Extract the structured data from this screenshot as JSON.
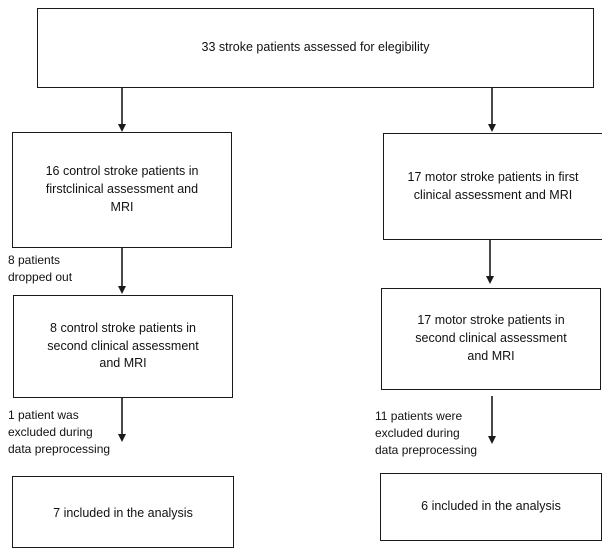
{
  "flowchart": {
    "top": {
      "text": "33 stroke patients assessed for elegibility"
    },
    "left": {
      "first": {
        "lines": [
          "16 control stroke patients in",
          "firstclinical assessment and",
          "MRI"
        ]
      },
      "dropout_note": {
        "lines": [
          "8 patients",
          "dropped out"
        ]
      },
      "second": {
        "lines": [
          "8 control stroke patients in",
          "second clinical assessment",
          "and MRI"
        ]
      },
      "exclusion_note": {
        "lines": [
          "1 patient was",
          "excluded during",
          "data preprocessing"
        ]
      },
      "final": {
        "text": "7 included in the analysis"
      }
    },
    "right": {
      "first": {
        "lines": [
          "17 motor stroke patients in first",
          "clinical assessment and MRI"
        ]
      },
      "second": {
        "lines": [
          "17 motor stroke patients in",
          "second clinical assessment",
          "and MRI"
        ]
      },
      "exclusion_note": {
        "lines": [
          "11 patients were",
          "excluded during",
          "data preprocessing"
        ]
      },
      "final": {
        "text": "6 included in the analysis"
      }
    }
  }
}
